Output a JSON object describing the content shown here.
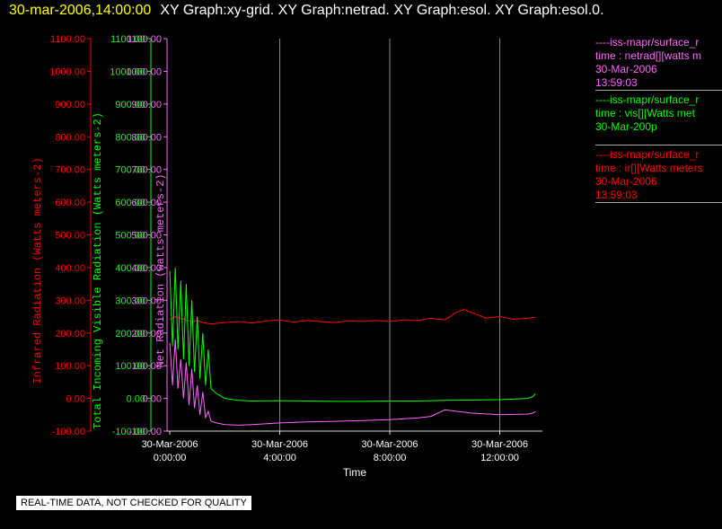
{
  "header": {
    "date": "30-mar-2006,14:00:00",
    "titles": "XY Graph:xy-grid.  XY Graph:netrad.  XY Graph:esol.  XY Graph:esol.0."
  },
  "disclaimer": "REAL-TIME DATA, NOT CHECKED FOR QUALITY",
  "legend": [
    {
      "color": "#ff66ff",
      "lines": [
        "----iss-mapr/surface_r",
        "time : netrad[][watts m",
        "30-Mar-2006",
        "13:59:03"
      ]
    },
    {
      "color": "#00ff00",
      "lines": [
        "----iss-mapr/surface_r",
        "time : vis[][Watts met",
        "30-Mar-200p"
      ]
    },
    {
      "color": "#ff0000",
      "lines": [
        "----iss-mapr/surface_r",
        "time : ir[][Watts meters",
        "30-Mar-2006",
        "13:59:03"
      ]
    }
  ],
  "chart_data": {
    "type": "line",
    "xlabel": "Time",
    "xlim": [
      -0.1,
      13.55
    ],
    "xticks": [
      {
        "x": 0,
        "date": "30-Mar-2006",
        "time": "0:00:00"
      },
      {
        "x": 4,
        "date": "30-Mar-2006",
        "time": "4:00:00"
      },
      {
        "x": 8,
        "date": "30-Mar-2006",
        "time": "8:00:00"
      },
      {
        "x": 12,
        "date": "30-Mar-2006",
        "time": "12:00:00"
      }
    ],
    "ylim": [
      -100,
      1100
    ],
    "yticks": [
      "-100.00",
      "0.00",
      "100.00",
      "200.00",
      "300.00",
      "400.00",
      "500.00",
      "600.00",
      "700.00",
      "800.00",
      "900.00",
      "1000.00",
      "1100.00"
    ],
    "vertical_gridlines": true,
    "axes": [
      {
        "id": "ir",
        "label": "Infrared Radiation (Watts meters-2)",
        "color": "#ff0000"
      },
      {
        "id": "vis",
        "label": "Total Incoming Visible Radiation (Watts meters-2)",
        "color": "#00ff00"
      },
      {
        "id": "net",
        "label": "Net Radiation (watts meters-2)",
        "color": "#ff66ff"
      }
    ],
    "series": [
      {
        "id": "ir",
        "color": "#ff0000",
        "x": [
          0,
          0.2,
          0.4,
          0.6,
          0.8,
          1.0,
          1.2,
          1.5,
          2.0,
          2.5,
          3.0,
          3.5,
          4.0,
          4.5,
          5.0,
          5.5,
          6.0,
          6.5,
          7.0,
          7.5,
          8.0,
          8.5,
          9.0,
          9.5,
          10.0,
          10.4,
          10.7,
          11.0,
          11.5,
          12.0,
          12.5,
          13.0,
          13.3
        ],
        "y": [
          240,
          250,
          245,
          240,
          235,
          238,
          232,
          228,
          232,
          235,
          230,
          237,
          240,
          233,
          238,
          235,
          232,
          237,
          235,
          238,
          235,
          240,
          238,
          245,
          240,
          262,
          272,
          262,
          245,
          250,
          242,
          245,
          248
        ]
      },
      {
        "id": "vis",
        "color": "#00ff00",
        "x": [
          0,
          0.1,
          0.2,
          0.3,
          0.4,
          0.5,
          0.6,
          0.7,
          0.8,
          0.9,
          1.0,
          1.1,
          1.2,
          1.3,
          1.4,
          1.5,
          1.7,
          2.0,
          2.5,
          3.0,
          4.0,
          5.0,
          6.0,
          7.0,
          8.0,
          9.0,
          10.0,
          11.0,
          12.0,
          13.0,
          13.2,
          13.3
        ],
        "y": [
          390,
          160,
          400,
          150,
          360,
          120,
          350,
          100,
          300,
          80,
          250,
          60,
          200,
          40,
          150,
          30,
          15,
          0,
          -6,
          -8,
          -7,
          -8,
          -9,
          -9,
          -8,
          -8,
          -6,
          -5,
          -4,
          0,
          5,
          15
        ]
      },
      {
        "id": "net",
        "color": "#ff66ff",
        "x": [
          0,
          0.1,
          0.2,
          0.3,
          0.4,
          0.5,
          0.6,
          0.7,
          0.8,
          0.9,
          1.0,
          1.1,
          1.2,
          1.3,
          1.4,
          1.5,
          1.7,
          2.0,
          2.5,
          3.0,
          4.0,
          5.0,
          6.0,
          7.0,
          8.0,
          9.0,
          9.5,
          10.0,
          11.0,
          12.0,
          13.0,
          13.2,
          13.3
        ],
        "y": [
          170,
          40,
          180,
          30,
          120,
          0,
          110,
          -20,
          90,
          -30,
          40,
          -50,
          20,
          -60,
          -40,
          -70,
          -75,
          -80,
          -82,
          -80,
          -75,
          -72,
          -70,
          -68,
          -65,
          -60,
          -55,
          -35,
          -45,
          -50,
          -48,
          -45,
          -40
        ]
      }
    ]
  }
}
